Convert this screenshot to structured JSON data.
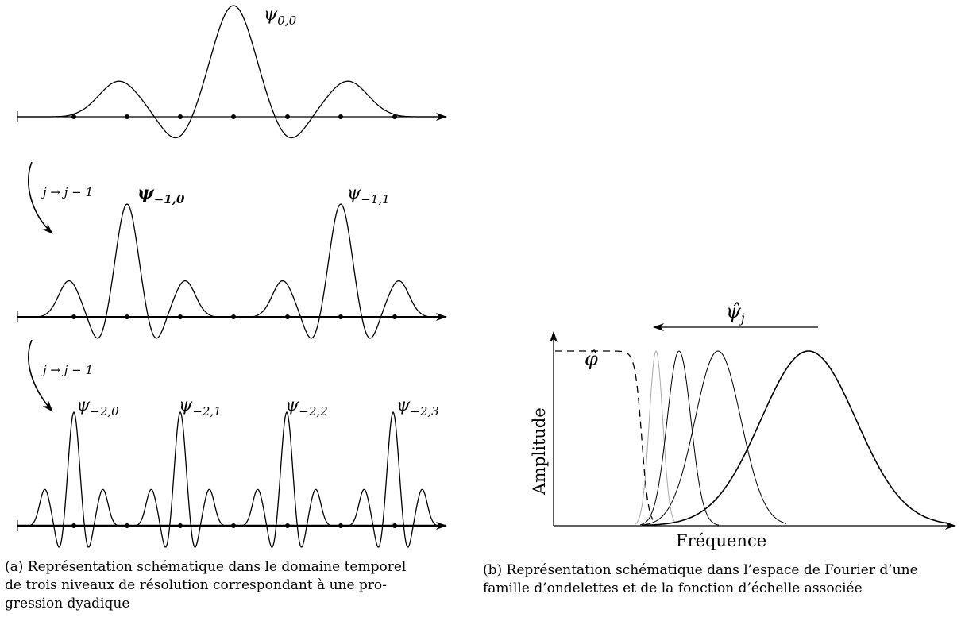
{
  "panel_a": {
    "levels": [
      {
        "transition_label": "",
        "wavelets": [
          {
            "symbol": "ψ",
            "subscript": "0,0"
          }
        ]
      },
      {
        "transition_label": "j → j − 1",
        "wavelets": [
          {
            "symbol": "ψ",
            "subscript": "−1,0"
          },
          {
            "symbol": "ψ",
            "subscript": "−1,1"
          }
        ]
      },
      {
        "transition_label": "j → j − 1",
        "wavelets": [
          {
            "symbol": "ψ",
            "subscript": "−2,0"
          },
          {
            "symbol": "ψ",
            "subscript": "−2,1"
          },
          {
            "symbol": "ψ",
            "subscript": "−2,2"
          },
          {
            "symbol": "ψ",
            "subscript": "−2,3"
          }
        ]
      }
    ],
    "caption_lines": [
      "(a) Représentation schématique dans le domaine temporel",
      "de trois niveaux de résolution correspondant à une pro-",
      "gression dyadique"
    ]
  },
  "panel_b": {
    "ylabel": "Amplitude",
    "xlabel": "Fréquence",
    "scaling_label": "φ̂",
    "wavelet_label_symbol": "ψ̂",
    "wavelet_label_subscript": "j",
    "caption_lines": [
      "(b) Représentation schématique dans l’espace de Fourier d’une",
      "famille d’ondelettes et de la fonction d’échelle associée"
    ]
  }
}
